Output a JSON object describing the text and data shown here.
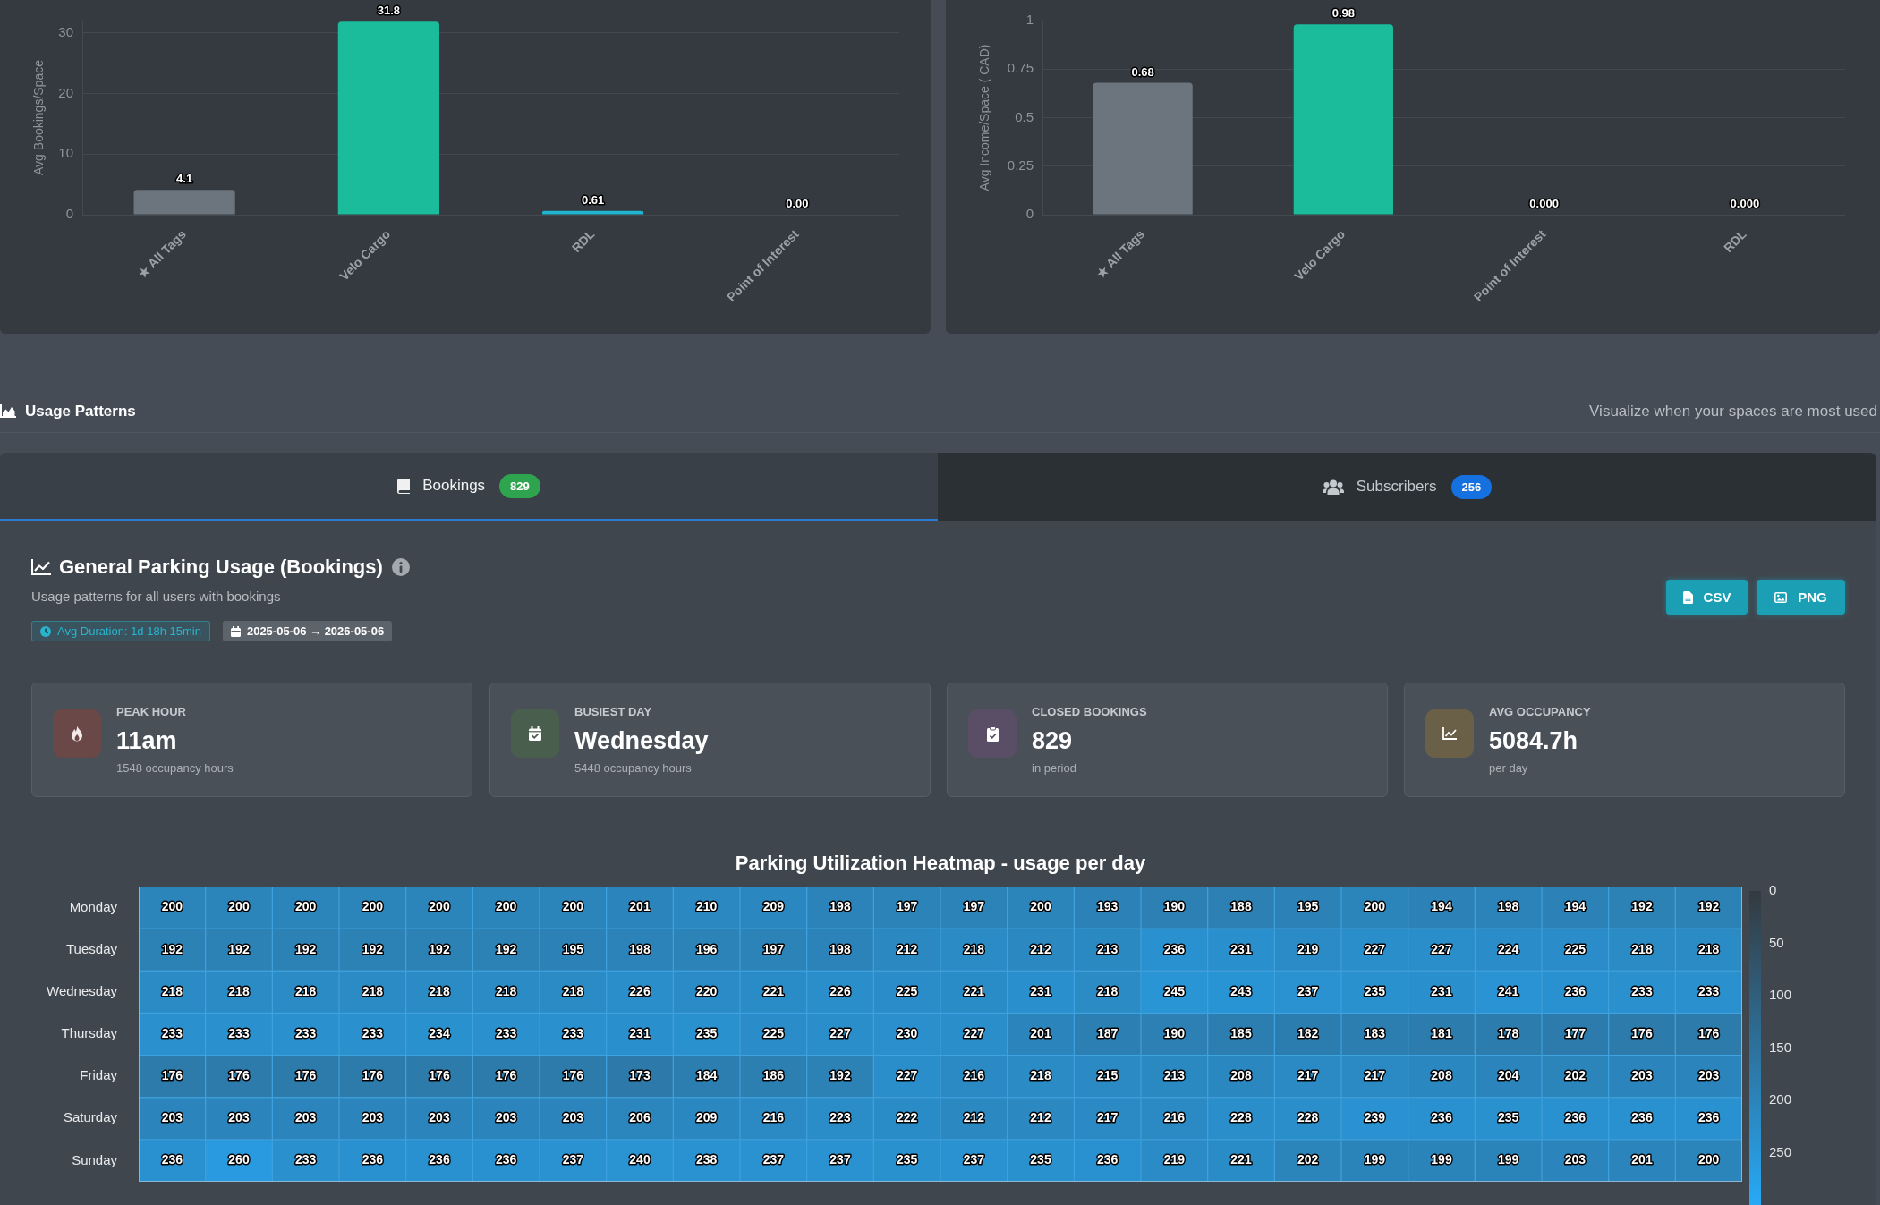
{
  "chart_data": [
    {
      "type": "bar",
      "ylabel": "Avg Bookings/Space",
      "categories": [
        "★ All Tags",
        "Velo Cargo",
        "RDL",
        "Point of Interest"
      ],
      "values": [
        4.1,
        31.8,
        0.61,
        0
      ],
      "value_labels": [
        "4.1",
        "31.8",
        "0.61",
        "0.00"
      ],
      "colors": [
        "#6c757d",
        "#1abc9c",
        "#1fb5d0",
        "#6c757d"
      ],
      "ylim": [
        0,
        32
      ],
      "yticks": [
        0,
        10,
        20,
        30
      ],
      "grid": "y"
    },
    {
      "type": "bar",
      "ylabel": "Avg Income/Space ( CAD)",
      "categories": [
        "★ All Tags",
        "Velo Cargo",
        "Point of Interest",
        "RDL"
      ],
      "values": [
        0.68,
        0.98,
        0,
        0
      ],
      "value_labels": [
        "0.68",
        "0.98",
        "0.000",
        "0.000"
      ],
      "colors": [
        "#6c757d",
        "#1abc9c",
        "#6c757d",
        "#1fb5d0"
      ],
      "ylim": [
        0,
        1
      ],
      "yticks": [
        0,
        0.25,
        0.5,
        0.75,
        1
      ],
      "grid": "y"
    },
    {
      "type": "other",
      "title": "Usage Patterns",
      "subtitle": "Visualize when your spaces are most used",
      "annotations": [
        "Bookings",
        "829",
        "Subscribers",
        "256",
        "General Parking Usage (Bookings)",
        "Usage patterns for all users with bookings",
        "Avg Duration: 1d 18h 15min",
        "2025-05-06 → 2026-05-06",
        "CSV",
        "PNG",
        "PEAK HOUR",
        "11am",
        "1548 occupancy hours",
        "BUSIEST DAY",
        "Wednesday",
        "5448 occupancy hours",
        "CLOSED BOOKINGS",
        "829",
        "in period",
        "AVG OCCUPANCY",
        "5084.7h",
        "per day"
      ]
    },
    {
      "type": "heatmap",
      "title": "Parking Utilization Heatmap - usage per day",
      "categories": [
        null,
        null,
        null,
        null,
        null,
        null,
        null,
        null,
        null,
        null,
        null,
        null,
        null,
        null,
        null,
        null,
        null,
        null,
        null,
        null,
        null,
        null,
        null,
        null
      ],
      "y_categories": [
        "Monday",
        "Tuesday",
        "Wednesday",
        "Thursday",
        "Friday",
        "Saturday",
        "Sunday"
      ],
      "cells": [
        [
          200,
          200,
          200,
          200,
          200,
          200,
          200,
          201,
          210,
          209,
          198,
          197,
          197,
          200,
          193,
          190,
          188,
          195,
          200,
          194,
          198,
          194,
          192,
          192
        ],
        [
          192,
          192,
          192,
          192,
          192,
          192,
          195,
          198,
          196,
          197,
          198,
          212,
          218,
          212,
          213,
          236,
          231,
          219,
          227,
          227,
          224,
          225,
          218,
          218
        ],
        [
          218,
          218,
          218,
          218,
          218,
          218,
          218,
          226,
          220,
          221,
          226,
          225,
          221,
          231,
          218,
          245,
          243,
          237,
          235,
          231,
          241,
          236,
          233,
          233
        ],
        [
          233,
          233,
          233,
          233,
          234,
          233,
          233,
          231,
          235,
          225,
          227,
          230,
          227,
          201,
          187,
          190,
          185,
          182,
          183,
          181,
          178,
          177,
          176,
          176
        ],
        [
          176,
          176,
          176,
          176,
          176,
          176,
          176,
          173,
          184,
          186,
          192,
          227,
          216,
          218,
          215,
          213,
          208,
          217,
          217,
          208,
          204,
          202,
          203,
          203
        ],
        [
          203,
          203,
          203,
          203,
          203,
          203,
          203,
          206,
          209,
          216,
          223,
          222,
          212,
          212,
          217,
          216,
          228,
          228,
          239,
          236,
          235,
          236,
          236,
          236
        ],
        [
          236,
          260,
          233,
          236,
          236,
          236,
          237,
          240,
          238,
          237,
          237,
          235,
          237,
          235,
          236,
          219,
          221,
          202,
          199,
          199,
          199,
          203,
          201,
          200
        ]
      ],
      "clim": [
        0,
        300
      ],
      "cticks": [
        0,
        50,
        100,
        150,
        200,
        250
      ],
      "data_labels": true
    }
  ]
}
